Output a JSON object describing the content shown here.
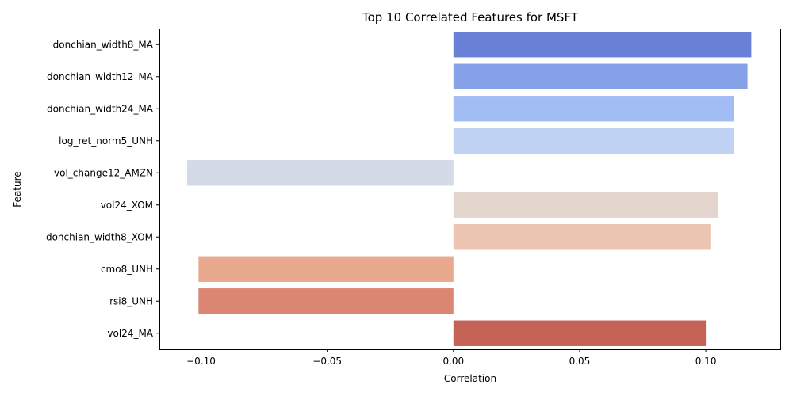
{
  "chart_data": {
    "type": "bar",
    "orientation": "horizontal",
    "title": "Top 10 Correlated Features for MSFT",
    "xlabel": "Correlation",
    "ylabel": "Feature",
    "xlim": [
      -0.1165,
      0.1295
    ],
    "xticks": [
      -0.1,
      -0.05,
      0.0,
      0.05,
      0.1
    ],
    "xtick_labels": [
      "−0.10",
      "−0.05",
      "0.00",
      "0.05",
      "0.10"
    ],
    "grid": false,
    "legend": "none",
    "categories": [
      "donchian_width8_MA",
      "donchian_width12_MA",
      "donchian_width24_MA",
      "log_ret_norm5_UNH",
      "vol_change12_AMZN",
      "vol24_XOM",
      "donchian_width8_XOM",
      "cmo8_UNH",
      "rsi8_UNH",
      "vol24_MA"
    ],
    "values": [
      0.118,
      0.1165,
      0.111,
      0.111,
      -0.1055,
      0.105,
      0.1018,
      -0.101,
      -0.101,
      0.1
    ],
    "colors": [
      "#6a80d6",
      "#85a1e8",
      "#a2bcf4",
      "#bfd2f3",
      "#d4dbe6",
      "#e4d6ce",
      "#ecc4b1",
      "#e8a98f",
      "#da8672",
      "#c46256"
    ]
  }
}
